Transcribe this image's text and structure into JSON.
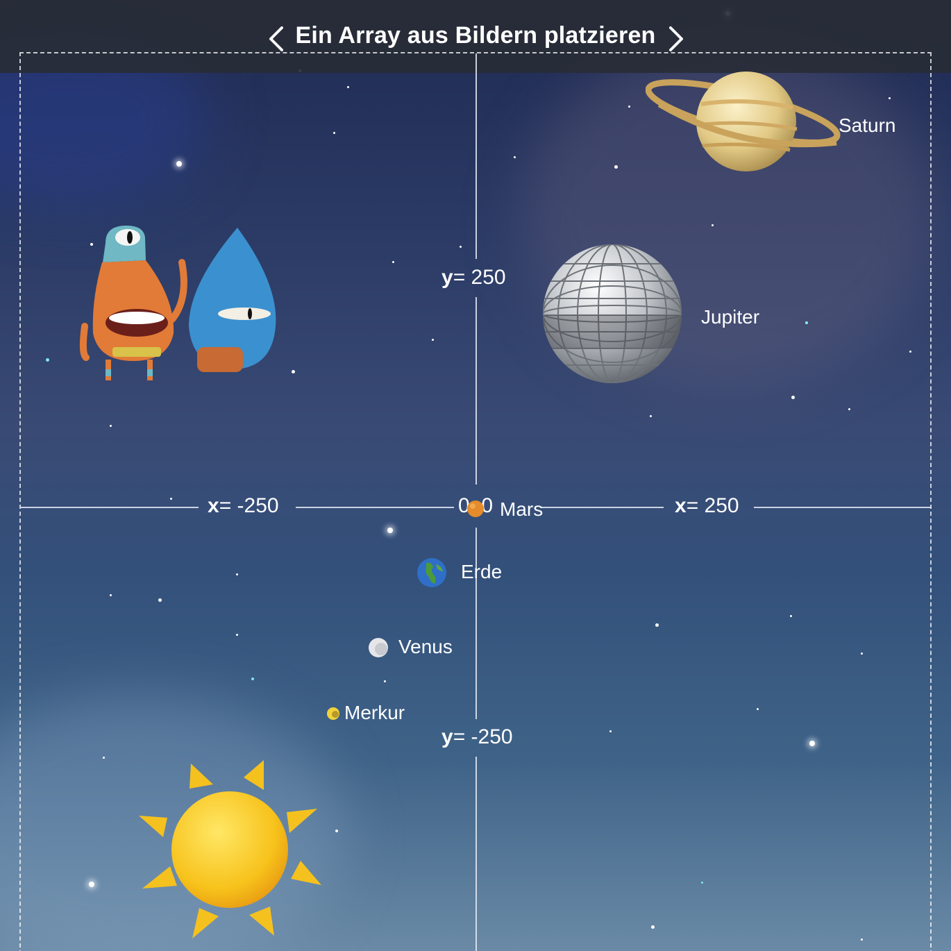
{
  "header": {
    "title": "Ein Array aus Bildern platzieren",
    "prev_icon": "chevron-left-icon",
    "next_icon": "chevron-right-icon"
  },
  "axes": {
    "x_neg_var": "x",
    "x_neg_value": "= -250",
    "x_pos_var": "x",
    "x_pos_value": "= 250",
    "y_pos_var": "y",
    "y_pos_value": "= 250",
    "y_neg_var": "y",
    "y_neg_value": "= -250",
    "origin": "0, 0"
  },
  "planets": {
    "saturn": "Saturn",
    "jupiter": "Jupiter",
    "mars": "Mars",
    "earth": "Erde",
    "venus": "Venus",
    "mercury": "Merkur"
  },
  "icons": {
    "saturn": "saturn-icon",
    "jupiter": "disco-ball-icon",
    "mars": "mars-icon",
    "earth": "earth-globe-icon",
    "venus": "venus-icon",
    "mercury": "mercury-icon",
    "sun": "sun-icon",
    "characters": "byte-and-blu-characters"
  },
  "colors": {
    "header": "#282c36",
    "sky_top": "#1f2a52",
    "sky_bottom": "#6a8aa6",
    "sun": "#f7c21b"
  }
}
